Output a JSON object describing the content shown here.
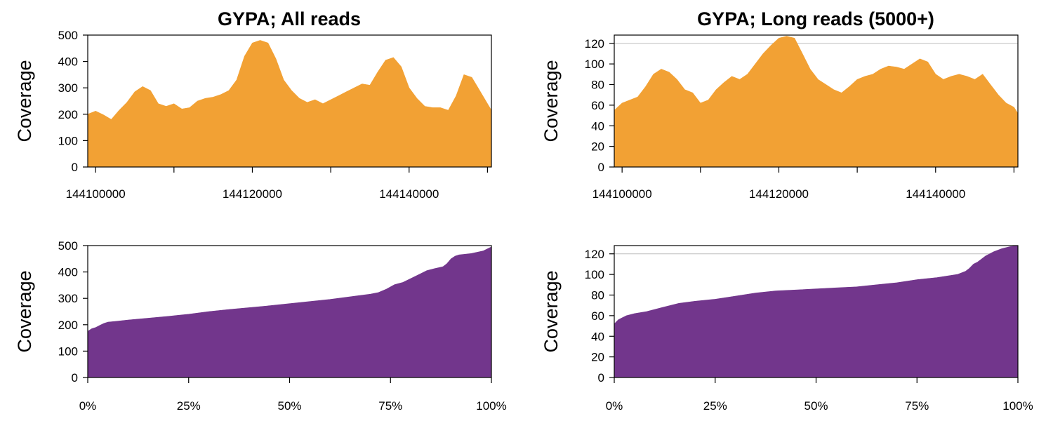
{
  "chart_data": [
    {
      "id": "all-reads-position",
      "type": "area",
      "title": "GYPA; All reads",
      "xlabel": "",
      "ylabel": "Coverage",
      "xlim": [
        144099000,
        144150500
      ],
      "ylim": [
        0,
        500
      ],
      "xticks": [
        144100000,
        144110000,
        144120000,
        144130000,
        144140000,
        144150000
      ],
      "xtick_labels": [
        "144100000",
        "",
        "144120000",
        "",
        "144140000",
        ""
      ],
      "yticks": [
        0,
        100,
        200,
        300,
        400,
        500
      ],
      "ytick_labels": [
        "0",
        "100",
        "200",
        "300",
        "400",
        "500"
      ],
      "refline": null,
      "color": "#F2A134",
      "x": [
        144099000,
        144100000,
        144101000,
        144102000,
        144103000,
        144104000,
        144105000,
        144106000,
        144107000,
        144108000,
        144109000,
        144110000,
        144111000,
        144112000,
        144113000,
        144114000,
        144115000,
        144116000,
        144117000,
        144118000,
        144119000,
        144120000,
        144121000,
        144122000,
        144123000,
        144124000,
        144125000,
        144126000,
        144127000,
        144128000,
        144129000,
        144130000,
        144131000,
        144132000,
        144133000,
        144134000,
        144135000,
        144136000,
        144137000,
        144138000,
        144139000,
        144140000,
        144141000,
        144142000,
        144143000,
        144144000,
        144145000,
        144146000,
        144147000,
        144148000,
        144149000,
        144150000,
        144150500
      ],
      "y": [
        200,
        212,
        198,
        180,
        215,
        245,
        285,
        305,
        290,
        240,
        230,
        240,
        220,
        225,
        250,
        260,
        265,
        275,
        290,
        330,
        420,
        470,
        480,
        470,
        410,
        330,
        290,
        260,
        245,
        255,
        240,
        255,
        270,
        285,
        300,
        315,
        310,
        360,
        405,
        415,
        380,
        300,
        260,
        230,
        225,
        225,
        215,
        270,
        350,
        340,
        290,
        240,
        215
      ]
    },
    {
      "id": "long-reads-position",
      "type": "area",
      "title": "GYPA; Long reads (5000+)",
      "xlabel": "",
      "ylabel": "Coverage",
      "xlim": [
        144099000,
        144150500
      ],
      "ylim": [
        0,
        128
      ],
      "xticks": [
        144100000,
        144110000,
        144120000,
        144130000,
        144140000,
        144150000
      ],
      "xtick_labels": [
        "144100000",
        "",
        "144120000",
        "",
        "144140000",
        ""
      ],
      "yticks": [
        0,
        20,
        40,
        60,
        80,
        100,
        120
      ],
      "ytick_labels": [
        "0",
        "20",
        "40",
        "60",
        "80",
        "100",
        "120"
      ],
      "refline": 120,
      "color": "#F2A134",
      "x": [
        144099000,
        144100000,
        144101000,
        144102000,
        144103000,
        144104000,
        144105000,
        144106000,
        144107000,
        144108000,
        144109000,
        144110000,
        144111000,
        144112000,
        144113000,
        144114000,
        144115000,
        144116000,
        144117000,
        144118000,
        144119000,
        144120000,
        144121000,
        144122000,
        144123000,
        144124000,
        144125000,
        144126000,
        144127000,
        144128000,
        144129000,
        144130000,
        144131000,
        144132000,
        144133000,
        144134000,
        144135000,
        144136000,
        144137000,
        144138000,
        144139000,
        144140000,
        144141000,
        144142000,
        144143000,
        144144000,
        144145000,
        144146000,
        144147000,
        144148000,
        144149000,
        144150000,
        144150500
      ],
      "y": [
        55,
        62,
        65,
        68,
        78,
        90,
        95,
        92,
        85,
        75,
        72,
        62,
        65,
        75,
        82,
        88,
        85,
        90,
        100,
        110,
        118,
        125,
        127,
        125,
        110,
        95,
        85,
        80,
        75,
        72,
        78,
        85,
        88,
        90,
        95,
        98,
        97,
        95,
        100,
        105,
        102,
        90,
        85,
        88,
        90,
        88,
        85,
        90,
        80,
        70,
        62,
        58,
        52
      ]
    },
    {
      "id": "all-reads-distribution",
      "type": "area",
      "title": "",
      "xlabel": "",
      "ylabel": "Coverage",
      "xlim": [
        0,
        100
      ],
      "ylim": [
        0,
        500
      ],
      "xticks": [
        0,
        25,
        50,
        75,
        100
      ],
      "xtick_labels": [
        "0%",
        "25%",
        "50%",
        "75%",
        "100%"
      ],
      "yticks": [
        0,
        100,
        200,
        300,
        400,
        500
      ],
      "ytick_labels": [
        "0",
        "100",
        "200",
        "300",
        "400",
        "500"
      ],
      "refline": null,
      "color": "#72368C",
      "x": [
        0,
        1,
        2,
        3,
        4,
        5,
        7,
        10,
        15,
        20,
        25,
        30,
        35,
        40,
        45,
        50,
        55,
        60,
        65,
        70,
        72,
        74,
        76,
        78,
        80,
        82,
        84,
        86,
        88,
        89,
        90,
        91,
        92,
        95,
        98,
        100
      ],
      "y": [
        175,
        185,
        190,
        198,
        205,
        210,
        213,
        218,
        225,
        232,
        240,
        250,
        258,
        265,
        272,
        280,
        288,
        296,
        306,
        316,
        322,
        335,
        352,
        360,
        375,
        390,
        405,
        413,
        420,
        432,
        450,
        460,
        465,
        470,
        480,
        495
      ]
    },
    {
      "id": "long-reads-distribution",
      "type": "area",
      "title": "",
      "xlabel": "",
      "ylabel": "Coverage",
      "xlim": [
        0,
        100
      ],
      "ylim": [
        0,
        128
      ],
      "xticks": [
        0,
        25,
        50,
        75,
        100
      ],
      "xtick_labels": [
        "0%",
        "25%",
        "50%",
        "75%",
        "100%"
      ],
      "yticks": [
        0,
        20,
        40,
        60,
        80,
        100,
        120
      ],
      "ytick_labels": [
        "0",
        "20",
        "40",
        "60",
        "80",
        "100",
        "120"
      ],
      "refline": 120,
      "color": "#72368C",
      "x": [
        0,
        1,
        2,
        3,
        5,
        8,
        10,
        12,
        14,
        16,
        18,
        20,
        25,
        30,
        35,
        40,
        45,
        50,
        55,
        60,
        65,
        70,
        75,
        80,
        85,
        87,
        88,
        89,
        90,
        91,
        92,
        94,
        96,
        98,
        100
      ],
      "y": [
        52,
        56,
        58,
        60,
        62,
        64,
        66,
        68,
        70,
        72,
        73,
        74,
        76,
        79,
        82,
        84,
        85,
        86,
        87,
        88,
        90,
        92,
        95,
        97,
        100,
        103,
        106,
        110,
        112,
        115,
        118,
        122,
        125,
        127,
        128
      ]
    }
  ]
}
